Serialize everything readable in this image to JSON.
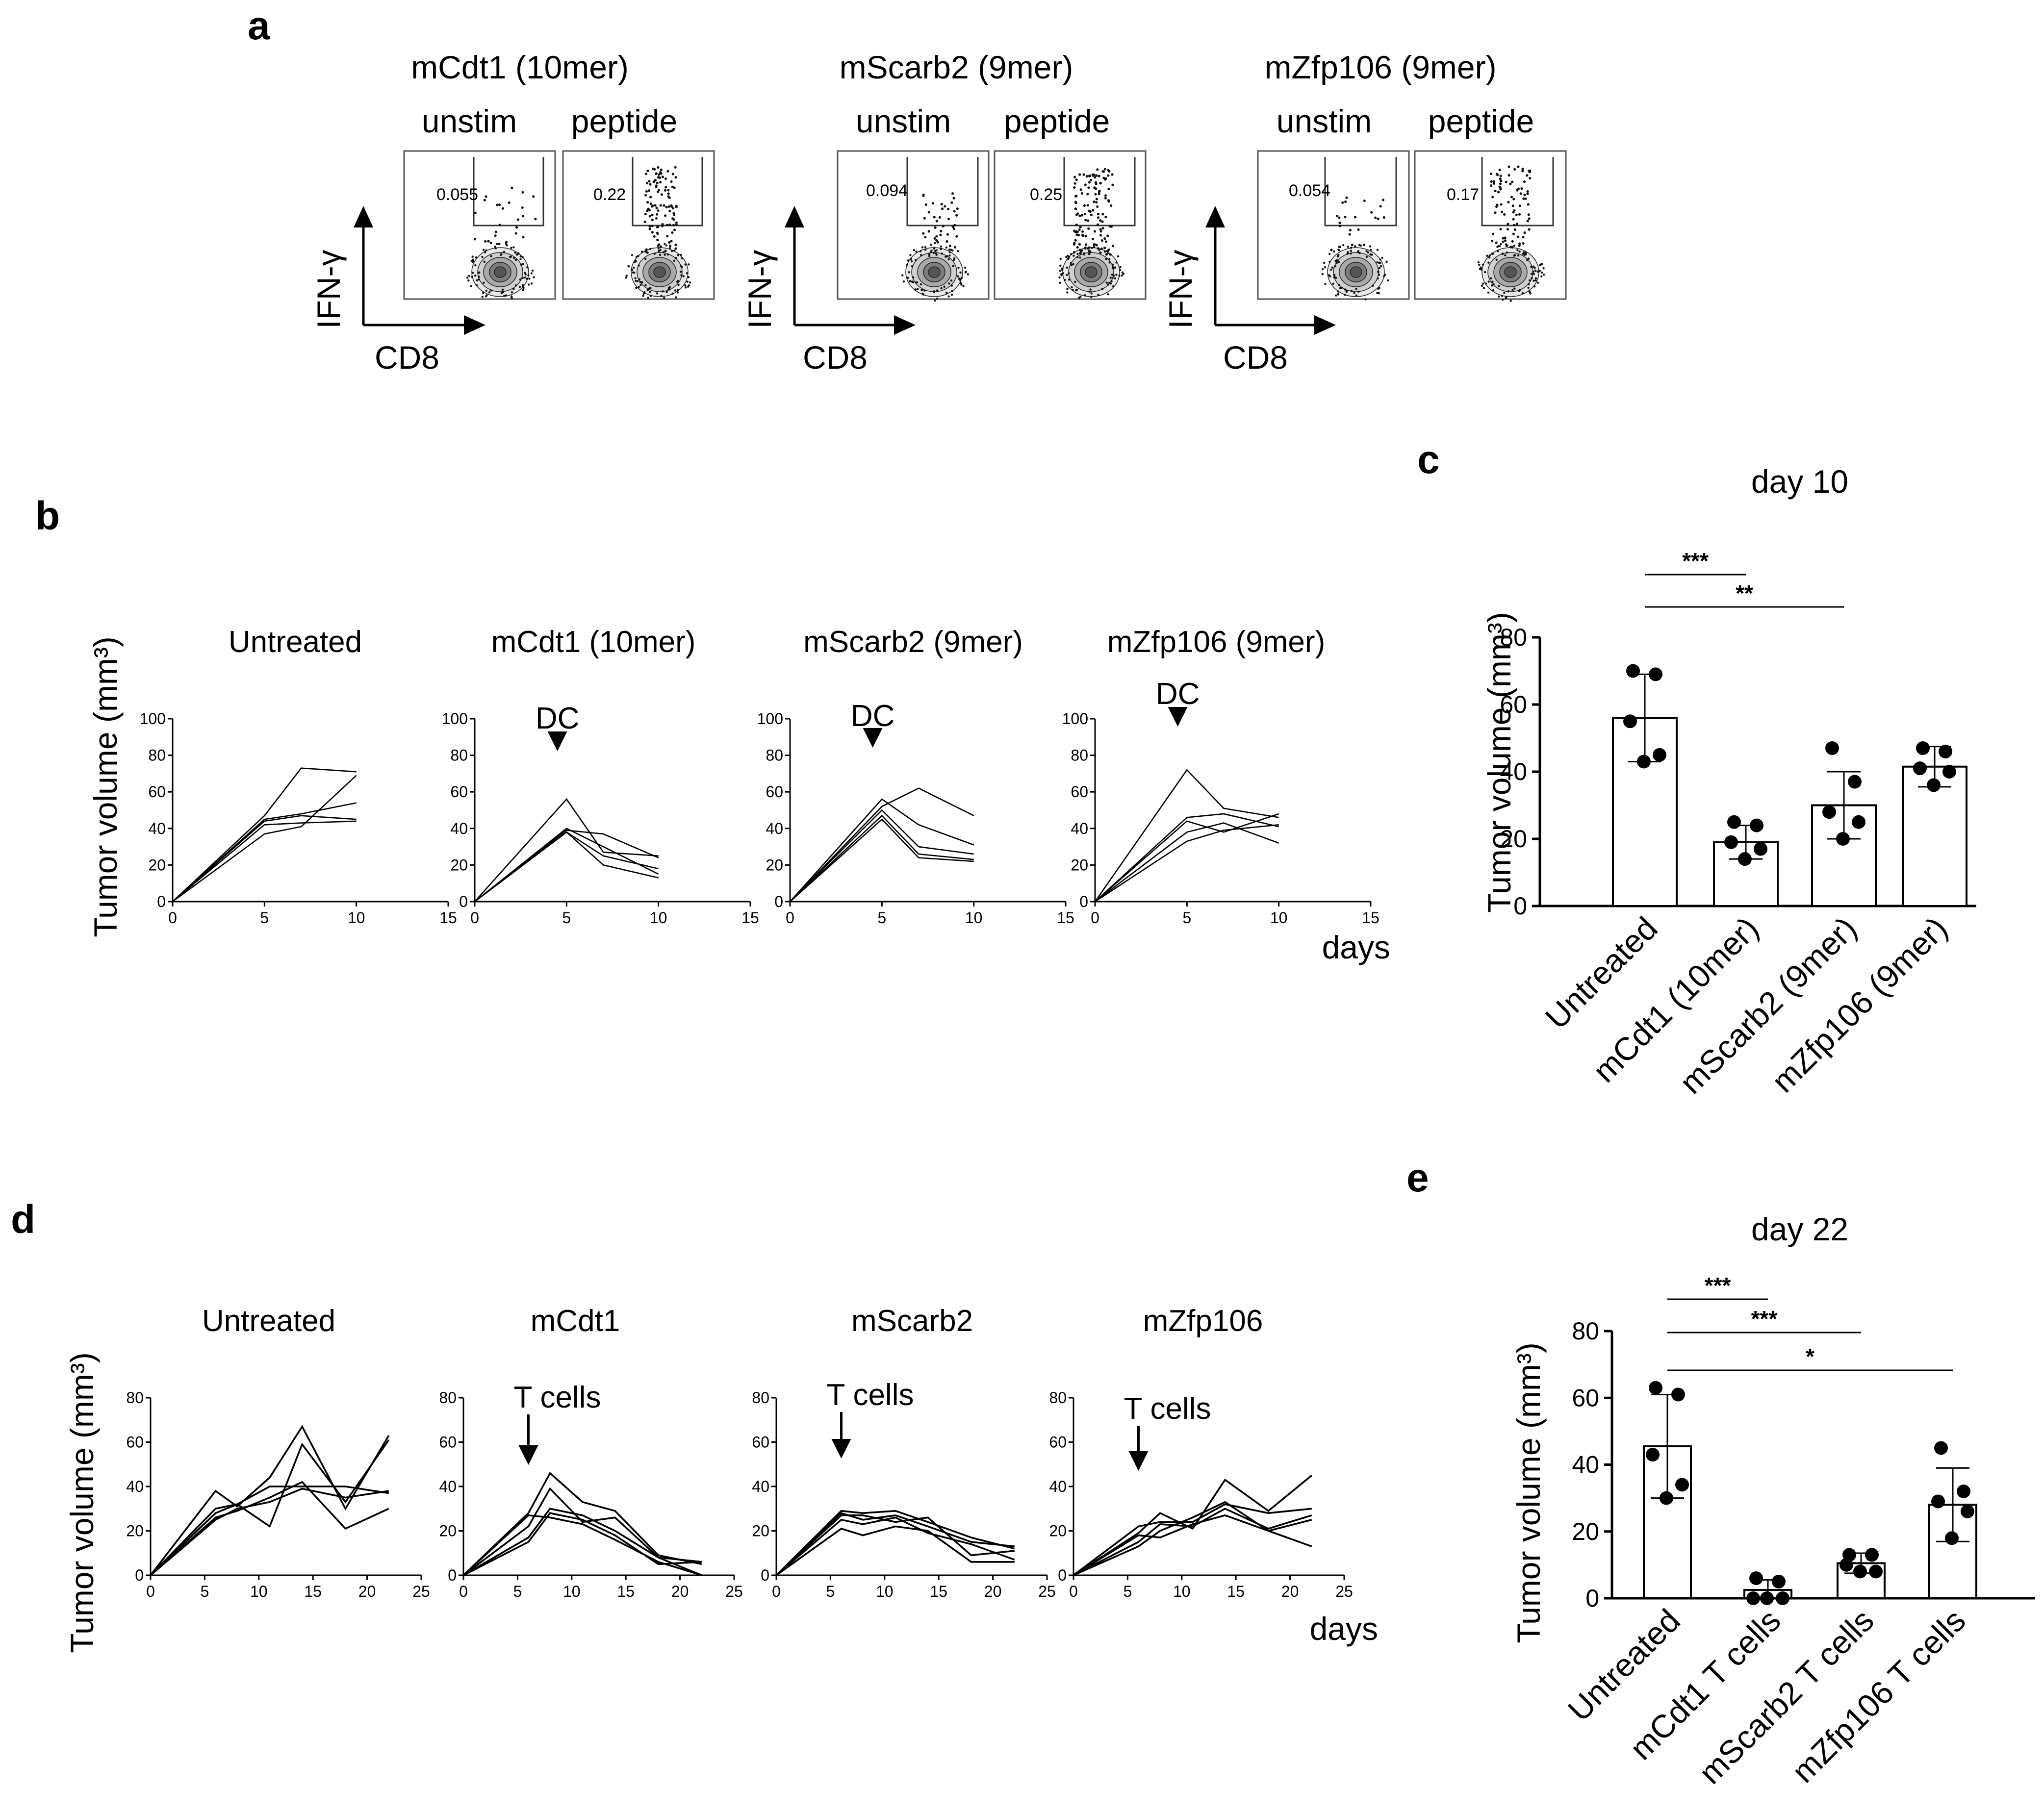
{
  "panel_a": {
    "letter": "a",
    "x_axis": "CD8",
    "y_axis": "IFN-γ",
    "condition_labels": [
      "unstim",
      "peptide"
    ],
    "groups": [
      {
        "title": "mCdt1 (10mer)",
        "values": [
          "0.055",
          "0.22"
        ]
      },
      {
        "title": "mScarb2 (9mer)",
        "values": [
          "0.094",
          "0.25"
        ]
      },
      {
        "title": "mZfp106 (9mer)",
        "values": [
          "0.054",
          "0.17"
        ]
      }
    ]
  },
  "chart_data": [
    {
      "panel": "b",
      "type": "line",
      "ylabel": "Tumor volume (mm³)",
      "xlabel": "days",
      "xlim": [
        0,
        15
      ],
      "ylim": [
        0,
        100
      ],
      "xticks": [
        "0",
        "5",
        "10",
        "15"
      ],
      "yticks": [
        "0",
        "20",
        "40",
        "60",
        "80",
        "100"
      ],
      "arrow_label": "DC",
      "arrow_day": 4.5,
      "subplots": [
        {
          "title": "Untreated",
          "arrow": false,
          "series": [
            {
              "x": [
                0,
                5,
                7,
                10
              ],
              "y": [
                0,
                47,
                73,
                71
              ]
            },
            {
              "x": [
                0,
                5,
                7,
                10
              ],
              "y": [
                0,
                45,
                48,
                54
              ]
            },
            {
              "x": [
                0,
                5,
                7,
                10
              ],
              "y": [
                0,
                42,
                43,
                44
              ]
            },
            {
              "x": [
                0,
                5,
                7,
                10
              ],
              "y": [
                0,
                37,
                41,
                69
              ]
            },
            {
              "x": [
                0,
                5,
                7,
                10
              ],
              "y": [
                0,
                44,
                47,
                45
              ]
            }
          ]
        },
        {
          "title": "mCdt1 (10mer)",
          "arrow": true,
          "series": [
            {
              "x": [
                0,
                5,
                7,
                10
              ],
              "y": [
                0,
                56,
                27,
                25
              ]
            },
            {
              "x": [
                0,
                5,
                7,
                10
              ],
              "y": [
                0,
                39,
                37,
                24
              ]
            },
            {
              "x": [
                0,
                5,
                7,
                10
              ],
              "y": [
                0,
                38,
                25,
                18
              ]
            },
            {
              "x": [
                0,
                5,
                7,
                10
              ],
              "y": [
                0,
                38,
                20,
                13
              ]
            },
            {
              "x": [
                0,
                5,
                7,
                10
              ],
              "y": [
                0,
                40,
                30,
                15
              ]
            }
          ]
        },
        {
          "title": "mScarb2 (9mer)",
          "arrow": true,
          "series": [
            {
              "x": [
                0,
                5,
                7,
                10
              ],
              "y": [
                0,
                52,
                62,
                47
              ]
            },
            {
              "x": [
                0,
                5,
                7,
                10
              ],
              "y": [
                0,
                56,
                42,
                31
              ]
            },
            {
              "x": [
                0,
                5,
                7,
                10
              ],
              "y": [
                0,
                50,
                30,
                26
              ]
            },
            {
              "x": [
                0,
                5,
                7,
                10
              ],
              "y": [
                0,
                47,
                26,
                23
              ]
            },
            {
              "x": [
                0,
                5,
                7,
                10
              ],
              "y": [
                0,
                45,
                24,
                22
              ]
            }
          ]
        },
        {
          "title": "mZfp106 (9mer)",
          "arrow": true,
          "series": [
            {
              "x": [
                0,
                5,
                7,
                10
              ],
              "y": [
                0,
                72,
                51,
                46
              ]
            },
            {
              "x": [
                0,
                5,
                7,
                10
              ],
              "y": [
                0,
                46,
                48,
                41
              ]
            },
            {
              "x": [
                0,
                5,
                7,
                10
              ],
              "y": [
                0,
                44,
                38,
                48
              ]
            },
            {
              "x": [
                0,
                5,
                7,
                10
              ],
              "y": [
                0,
                38,
                43,
                32
              ]
            },
            {
              "x": [
                0,
                5,
                7,
                10
              ],
              "y": [
                0,
                33,
                39,
                42
              ]
            }
          ]
        }
      ]
    },
    {
      "panel": "c",
      "type": "bar",
      "title": "day 10",
      "ylabel": "Tumor volume (mm³)",
      "ylim": [
        0,
        80
      ],
      "yticks": [
        "0",
        "20",
        "40",
        "60",
        "80"
      ],
      "categories": [
        "Untreated",
        "mCdt1 (10mer)",
        "mScarb2 (9mer)",
        "mZfp106 (9mer)"
      ],
      "means": [
        56,
        19,
        30,
        41.5
      ],
      "sd": [
        13,
        5,
        10,
        6
      ],
      "points": [
        [
          70,
          69,
          55,
          45,
          43
        ],
        [
          25,
          24,
          19,
          17,
          14
        ],
        [
          47,
          37,
          28,
          25,
          20
        ],
        [
          47,
          46,
          41,
          40,
          36
        ]
      ],
      "significance": [
        {
          "from": 0,
          "to": 1,
          "label": "***"
        },
        {
          "from": 0,
          "to": 2,
          "label": "**"
        }
      ]
    },
    {
      "panel": "d",
      "type": "line",
      "ylabel": "Tumor volume (mm³)",
      "xlabel": "days",
      "xlim": [
        0,
        25
      ],
      "ylim": [
        0,
        80
      ],
      "xticks": [
        "0",
        "5",
        "10",
        "15",
        "20",
        "25"
      ],
      "yticks": [
        "0",
        "20",
        "40",
        "60",
        "80"
      ],
      "arrow_label": "T cells",
      "arrow_day": 6,
      "subplots": [
        {
          "title": "Untreated",
          "arrow": false,
          "series": [
            {
              "x": [
                0,
                6,
                8,
                11,
                14,
                18,
                22
              ],
              "y": [
                0,
                38,
                31,
                44,
                67,
                30,
                63
              ]
            },
            {
              "x": [
                0,
                6,
                8,
                11,
                14,
                18,
                22
              ],
              "y": [
                0,
                30,
                32,
                22,
                59,
                33,
                61
              ]
            },
            {
              "x": [
                0,
                6,
                8,
                11,
                14,
                18,
                22
              ],
              "y": [
                0,
                28,
                32,
                40,
                40,
                40,
                37
              ]
            },
            {
              "x": [
                0,
                6,
                8,
                11,
                14,
                18,
                22
              ],
              "y": [
                0,
                26,
                29,
                35,
                42,
                21,
                30
              ]
            },
            {
              "x": [
                0,
                6,
                8,
                11,
                14,
                18,
                22
              ],
              "y": [
                0,
                25,
                30,
                33,
                39,
                35,
                38
              ]
            }
          ]
        },
        {
          "title": "mCdt1",
          "arrow": true,
          "series": [
            {
              "x": [
                0,
                6,
                8,
                11,
                14,
                18,
                22
              ],
              "y": [
                0,
                28,
                46,
                33,
                29,
                9,
                5
              ]
            },
            {
              "x": [
                0,
                6,
                8,
                11,
                14,
                18,
                22
              ],
              "y": [
                0,
                22,
                39,
                24,
                26,
                8,
                0
              ]
            },
            {
              "x": [
                0,
                6,
                8,
                11,
                14,
                18,
                22
              ],
              "y": [
                0,
                17,
                30,
                27,
                20,
                8,
                6
              ]
            },
            {
              "x": [
                0,
                6,
                8,
                11,
                14,
                18,
                22
              ],
              "y": [
                0,
                15,
                28,
                25,
                18,
                5,
                6
              ]
            },
            {
              "x": [
                0,
                6,
                8,
                11,
                14,
                18,
                22
              ],
              "y": [
                0,
                27,
                26,
                23,
                16,
                6,
                0
              ]
            }
          ]
        },
        {
          "title": "mScarb2",
          "arrow": true,
          "series": [
            {
              "x": [
                0,
                6,
                8,
                11,
                14,
                18,
                22
              ],
              "y": [
                0,
                29,
                28,
                29,
                24,
                17,
                12
              ]
            },
            {
              "x": [
                0,
                6,
                8,
                11,
                14,
                18,
                22
              ],
              "y": [
                0,
                28,
                25,
                27,
                22,
                15,
                13
              ]
            },
            {
              "x": [
                0,
                6,
                8,
                11,
                14,
                18,
                22
              ],
              "y": [
                0,
                27,
                27,
                24,
                26,
                9,
                11
              ]
            },
            {
              "x": [
                0,
                6,
                8,
                11,
                14,
                18,
                22
              ],
              "y": [
                0,
                25,
                23,
                26,
                19,
                14,
                7
              ]
            },
            {
              "x": [
                0,
                6,
                8,
                11,
                14,
                18,
                22
              ],
              "y": [
                0,
                21,
                18,
                22,
                20,
                6,
                6
              ]
            }
          ]
        },
        {
          "title": "mZfp106",
          "arrow": true,
          "series": [
            {
              "x": [
                0,
                6,
                8,
                11,
                14,
                18,
                22
              ],
              "y": [
                0,
                19,
                28,
                21,
                43,
                29,
                45
              ]
            },
            {
              "x": [
                0,
                6,
                8,
                11,
                14,
                18,
                22
              ],
              "y": [
                0,
                22,
                24,
                24,
                32,
                28,
                30
              ]
            },
            {
              "x": [
                0,
                6,
                8,
                11,
                14,
                18,
                22
              ],
              "y": [
                0,
                15,
                23,
                22,
                30,
                21,
                27
              ]
            },
            {
              "x": [
                0,
                6,
                8,
                11,
                14,
                18,
                22
              ],
              "y": [
                0,
                13,
                20,
                26,
                33,
                20,
                25
              ]
            },
            {
              "x": [
                0,
                6,
                8,
                11,
                14,
                18,
                22
              ],
              "y": [
                0,
                18,
                17,
                23,
                27,
                20,
                13
              ]
            }
          ]
        }
      ]
    },
    {
      "panel": "e",
      "type": "bar",
      "title": "day 22",
      "ylabel": "Tumor volume (mm³)",
      "ylim": [
        0,
        80
      ],
      "yticks": [
        "0",
        "20",
        "40",
        "60",
        "80"
      ],
      "categories": [
        "Untreated",
        "mCdt1 T cells",
        "mScarb2 T cells",
        "mZfp106 T cells"
      ],
      "means": [
        45.5,
        2.5,
        10.5,
        28
      ],
      "sd": [
        15.5,
        3,
        3,
        11
      ],
      "points": [
        [
          63,
          61,
          43,
          34,
          30
        ],
        [
          6,
          5,
          0,
          0,
          0
        ],
        [
          13,
          13,
          10,
          8,
          8
        ],
        [
          45,
          32,
          29,
          26,
          18
        ]
      ],
      "significance": [
        {
          "from": 0,
          "to": 1,
          "label": "***"
        },
        {
          "from": 0,
          "to": 2,
          "label": "***"
        },
        {
          "from": 0,
          "to": 3,
          "label": "*"
        }
      ]
    }
  ]
}
